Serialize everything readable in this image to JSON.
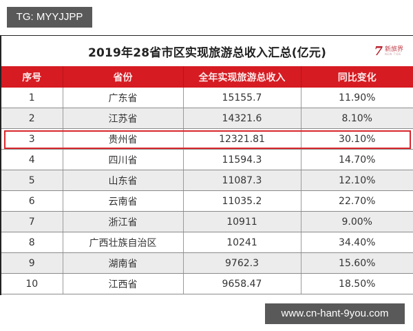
{
  "watermarks": {
    "top_left": "TG: MYYJJPP",
    "bottom_right": "www.cn-hant-9you.com"
  },
  "document": {
    "title": "2019年28省市区实现旅游总收入汇总(亿元)",
    "logo": {
      "mark": "7",
      "cn": "新旅界",
      "en": "NEW TIDE"
    },
    "colors": {
      "header_bg": "#d61b22",
      "highlight": "#d9262c",
      "row_alt": "#ececec"
    },
    "columns": [
      "序号",
      "省份",
      "全年实现旅游总收入",
      "同比变化"
    ],
    "highlighted_rank": 3,
    "rows": [
      {
        "rank": "1",
        "province": "广东省",
        "revenue": "15155.7",
        "change": "11.90%"
      },
      {
        "rank": "2",
        "province": "江苏省",
        "revenue": "14321.6",
        "change": "8.10%"
      },
      {
        "rank": "3",
        "province": "贵州省",
        "revenue": "12321.81",
        "change": "30.10%"
      },
      {
        "rank": "4",
        "province": "四川省",
        "revenue": "11594.3",
        "change": "14.70%"
      },
      {
        "rank": "5",
        "province": "山东省",
        "revenue": "11087.3",
        "change": "12.10%"
      },
      {
        "rank": "6",
        "province": "云南省",
        "revenue": "11035.2",
        "change": "22.70%"
      },
      {
        "rank": "7",
        "province": "浙江省",
        "revenue": "10911",
        "change": "9.00%"
      },
      {
        "rank": "8",
        "province": "广西壮族自治区",
        "revenue": "10241",
        "change": "34.40%"
      },
      {
        "rank": "9",
        "province": "湖南省",
        "revenue": "9762.3",
        "change": "15.60%"
      },
      {
        "rank": "10",
        "province": "江西省",
        "revenue": "9658.47",
        "change": "18.50%"
      }
    ]
  }
}
